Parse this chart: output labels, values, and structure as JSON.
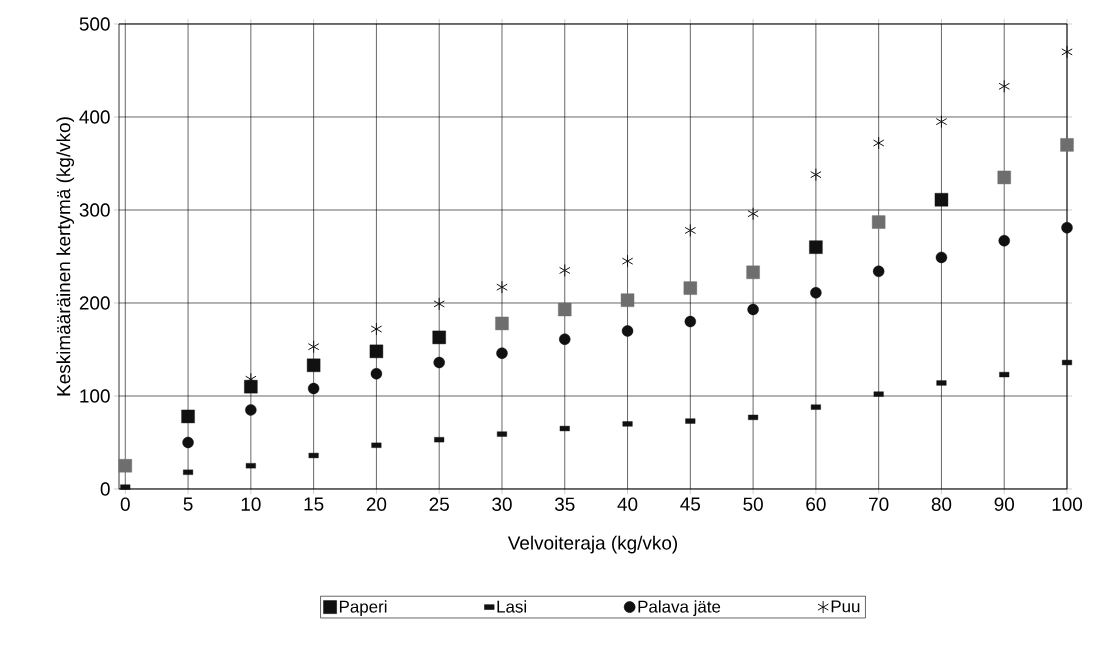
{
  "chart_data": {
    "type": "scatter",
    "xlabel": "Velvoiteraja (kg/vko)",
    "ylabel": "Keskimääräinen kertymä (kg/vko)",
    "categories": [
      "0",
      "5",
      "10",
      "15",
      "20",
      "25",
      "30",
      "35",
      "40",
      "45",
      "50",
      "60",
      "70",
      "80",
      "90",
      "100"
    ],
    "series": [
      {
        "name": "Paperi",
        "marker": "square",
        "color": "#111111",
        "colors": [
          "#6e6e6e",
          "#111111",
          "#111111",
          "#111111",
          "#111111",
          "#111111",
          "#6e6e6e",
          "#6e6e6e",
          "#6e6e6e",
          "#6e6e6e",
          "#6e6e6e",
          "#111111",
          "#6e6e6e",
          "#111111",
          "#6e6e6e",
          "#6e6e6e"
        ],
        "values": [
          25,
          78,
          110,
          133,
          148,
          163,
          178,
          193,
          203,
          216,
          233,
          260,
          287,
          311,
          335,
          370
        ]
      },
      {
        "name": "Lasi",
        "color": "#111111",
        "values": [
          2,
          18,
          25,
          36,
          47,
          53,
          59,
          65,
          70,
          73,
          77,
          88,
          102,
          114,
          123,
          136
        ]
      },
      {
        "name": "Palava jäte",
        "marker": "circle",
        "color": "#111111",
        "values": [
          null,
          50,
          85,
          108,
          124,
          136,
          146,
          161,
          170,
          180,
          193,
          211,
          234,
          249,
          267,
          281
        ]
      },
      {
        "name": "Puu",
        "marker": "cross",
        "color": "#111111",
        "values": [
          null,
          null,
          118,
          153,
          172,
          199,
          217,
          235,
          245,
          278,
          296,
          338,
          372,
          395,
          433,
          470
        ]
      }
    ],
    "ylim": [
      0,
      500
    ],
    "yticks": [
      0,
      100,
      200,
      300,
      400,
      500
    ],
    "grid": true,
    "legend": "bottom"
  }
}
